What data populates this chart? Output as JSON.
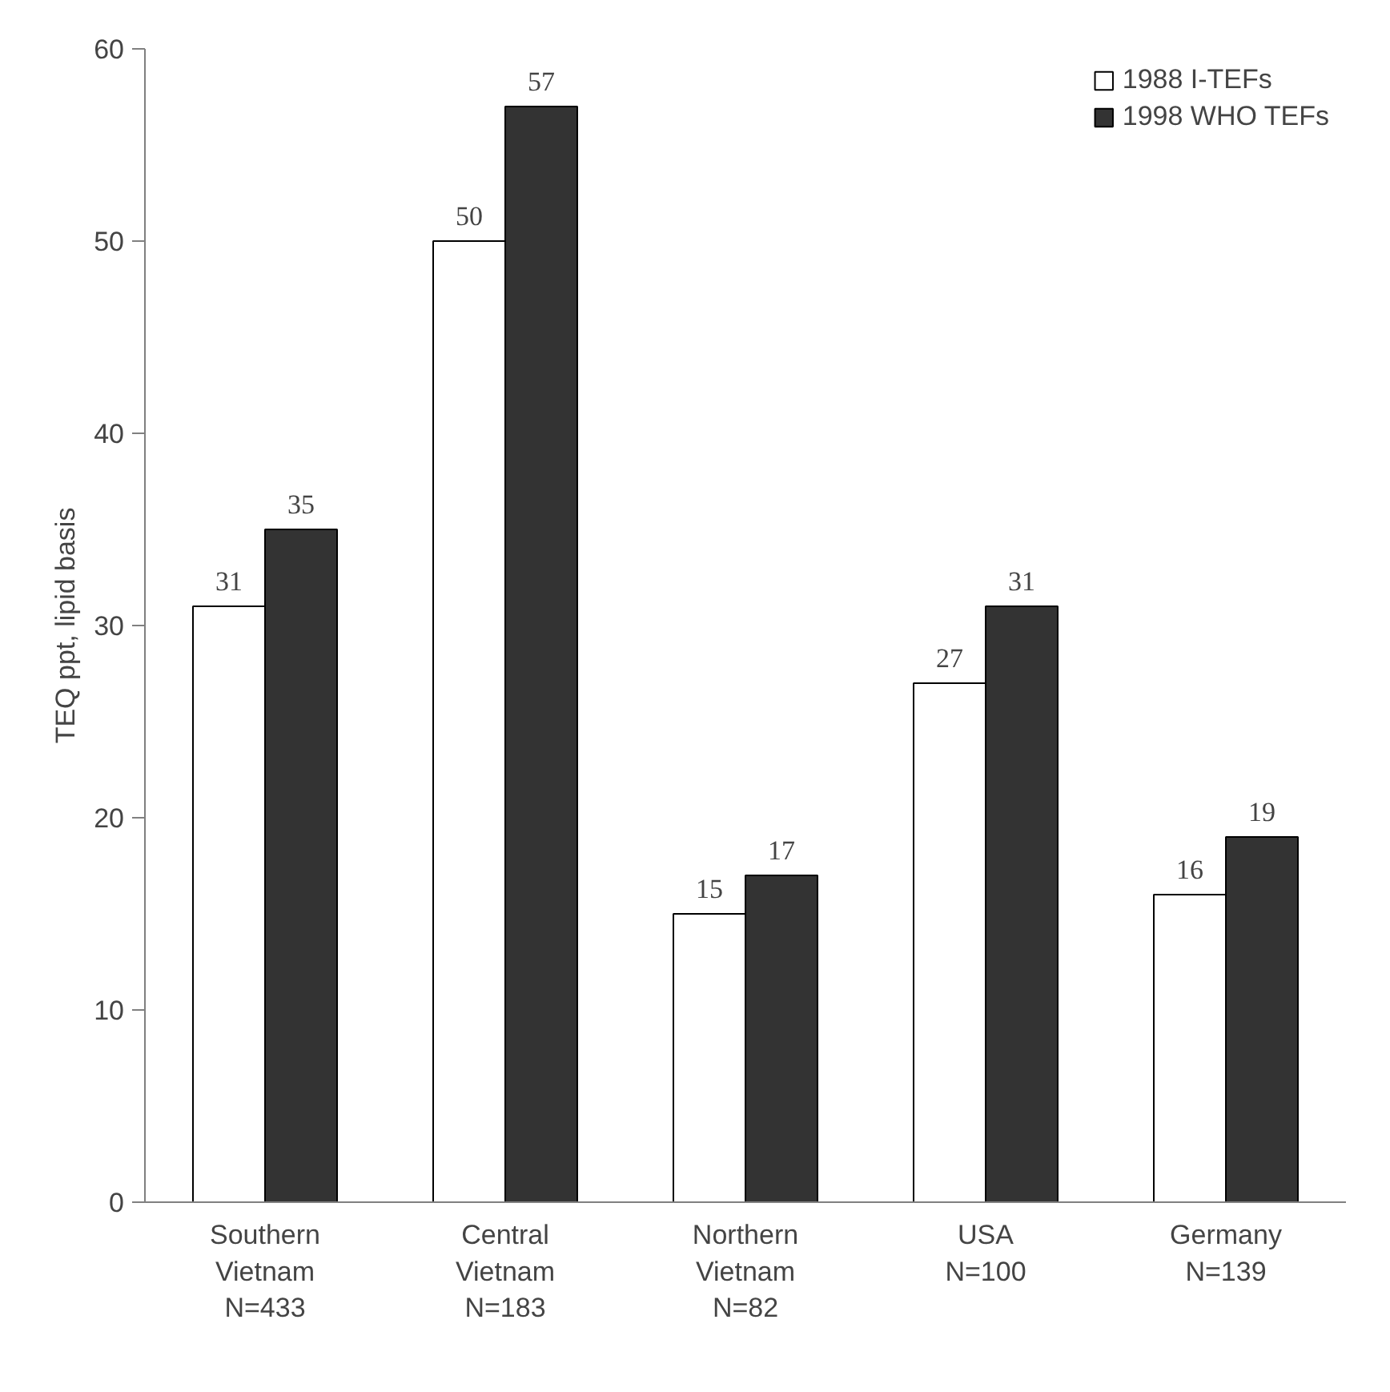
{
  "chart_data": {
    "type": "bar",
    "ylabel": "TEQ ppt, lipid basis",
    "categories": [
      "Southern\nVietnam\nN=433",
      "Central\nVietnam\nN=183",
      "Northern\nVietnam\nN=82",
      "USA\nN=100",
      "Germany\nN=139"
    ],
    "series": [
      {
        "name": "1988 I-TEFs",
        "color": "#ffffff",
        "values": [
          31,
          50,
          15,
          27,
          16
        ]
      },
      {
        "name": "1998 WHO TEFs",
        "color": "#333333",
        "values": [
          35,
          57,
          17,
          31,
          19
        ]
      }
    ],
    "ylim": [
      0,
      60
    ],
    "yticks": [
      0,
      10,
      20,
      30,
      40,
      50,
      60
    ],
    "grid": false,
    "legend": "top right",
    "data_labels": true
  }
}
